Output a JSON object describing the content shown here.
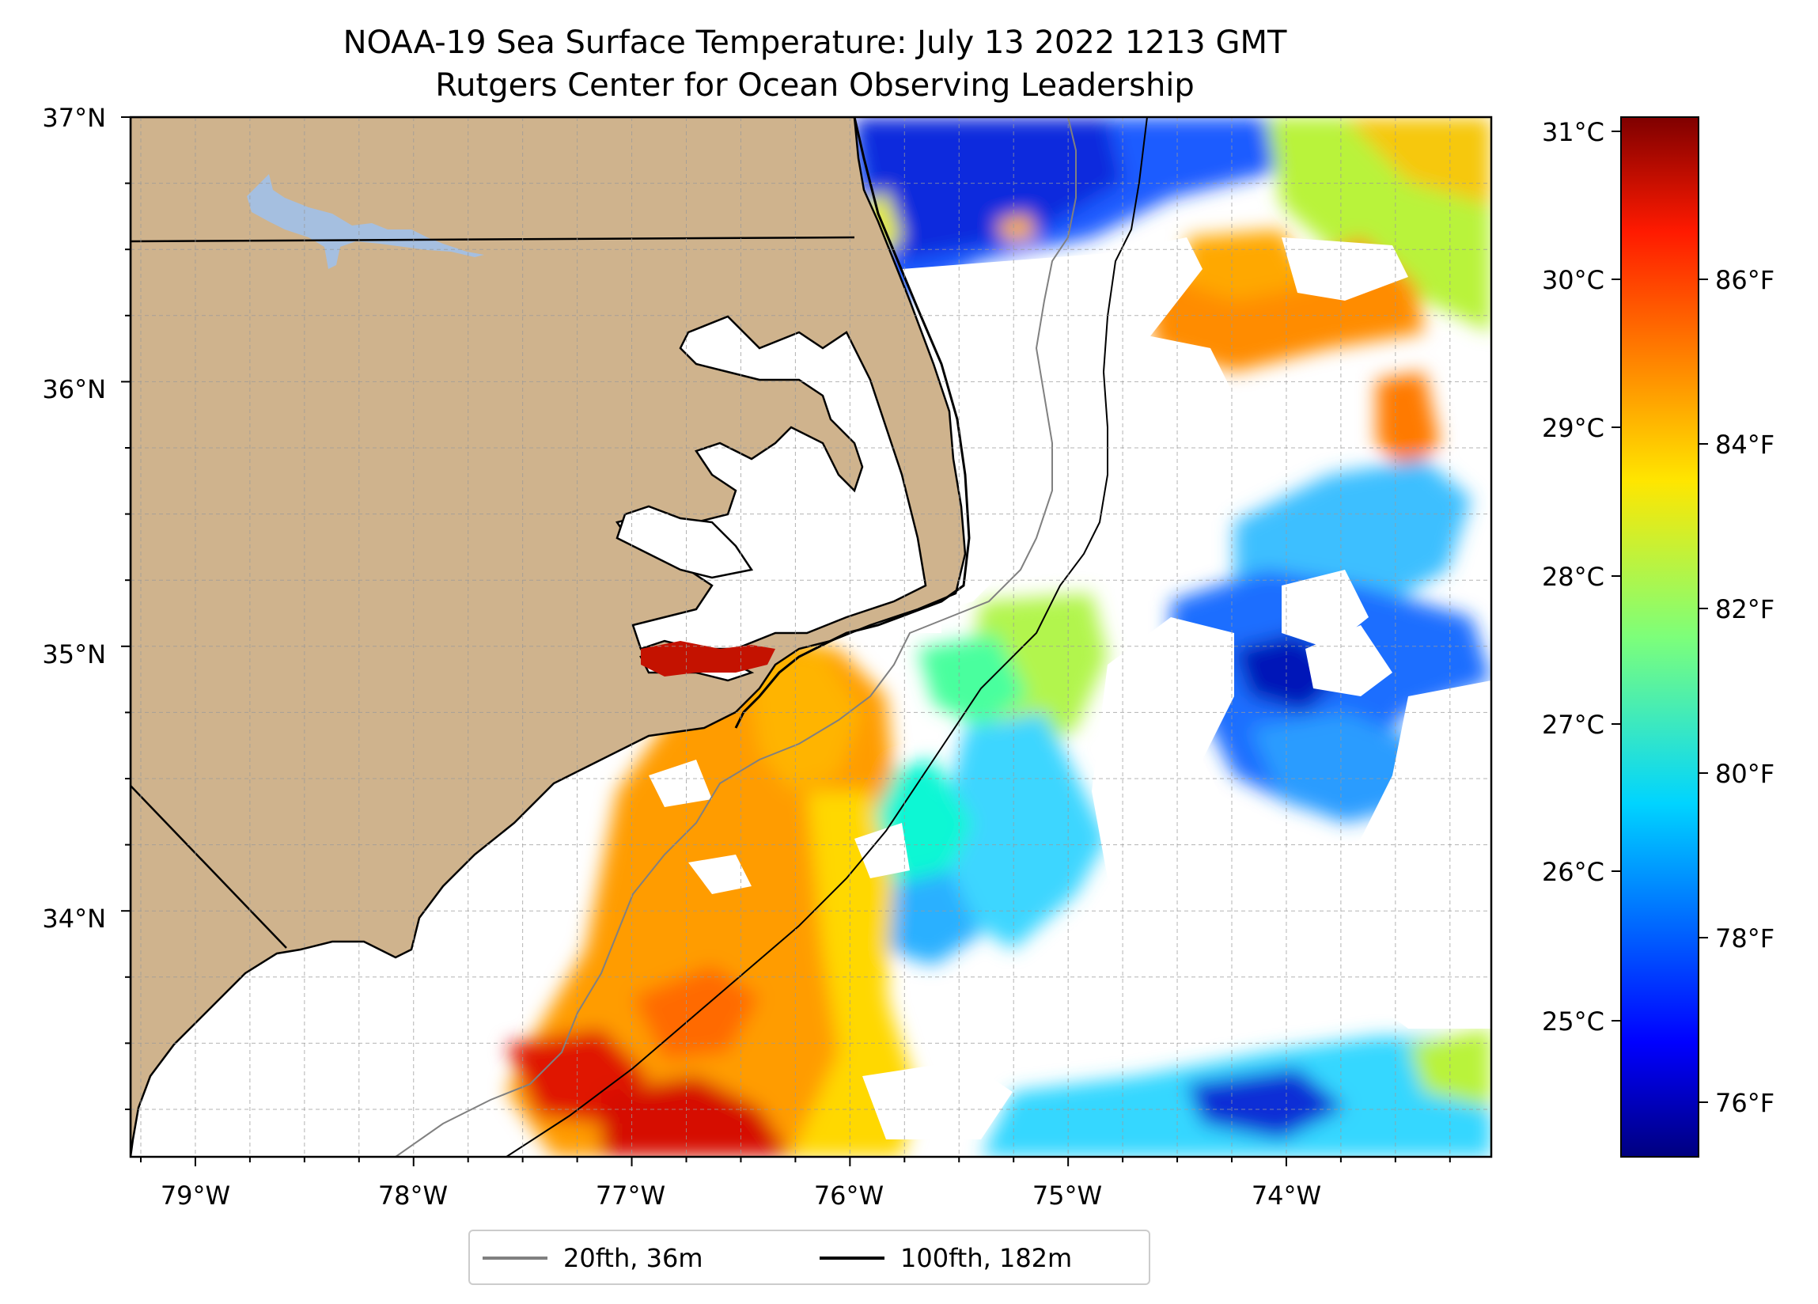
{
  "title": {
    "line1": "NOAA-19 Sea Surface Temperature: July 13 2022 1213 GMT",
    "line2": "Rutgers Center for Ocean Observing Leadership"
  },
  "map": {
    "lat_ticks": [
      "37°N",
      "36°N",
      "35°N",
      "34°N"
    ],
    "lon_ticks": [
      "79°W",
      "78°W",
      "77°W",
      "76°W",
      "75°W",
      "74°W"
    ],
    "lon_range": [
      -79.3,
      -73.05
    ],
    "lat_range": [
      33.1,
      37.0
    ],
    "land_color": "#cfb38d",
    "lake_color": "#a5bfe0",
    "gridlines": true
  },
  "colorbar": {
    "celsius_ticks": [
      "31°C",
      "30°C",
      "29°C",
      "28°C",
      "27°C",
      "26°C",
      "25°C"
    ],
    "fahrenheit_ticks": [
      "86°F",
      "84°F",
      "82°F",
      "80°F",
      "78°F",
      "76°F"
    ],
    "colormap": "jet",
    "range_celsius": [
      24.1,
      31.1
    ]
  },
  "legend": {
    "items": [
      {
        "label": "20fth, 36m",
        "color": "#808080"
      },
      {
        "label": "100fth, 182m",
        "color": "#000000"
      }
    ]
  }
}
